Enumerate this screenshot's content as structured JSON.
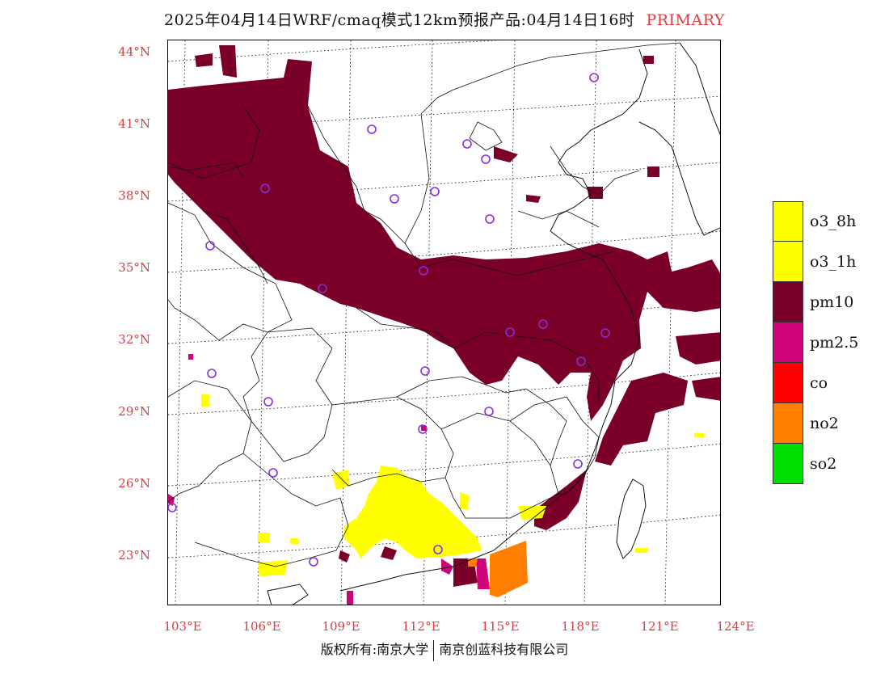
{
  "title": {
    "main": "2025年04月14日WRF/cmaq模式12km预报产品:04月14日16时",
    "tag": "PRIMARY"
  },
  "lat_labels": [
    "44°N",
    "41°N",
    "38°N",
    "35°N",
    "32°N",
    "29°N",
    "26°N",
    "23°N"
  ],
  "lon_labels": [
    "103°E",
    "106°E",
    "109°E",
    "112°E",
    "115°E",
    "118°E",
    "121°E",
    "124°E"
  ],
  "legend": [
    {
      "label": "o3_8h",
      "color": "#ffff00"
    },
    {
      "label": "o3_1h",
      "color": "#ffff00"
    },
    {
      "label": "pm10",
      "color": "#7b0028"
    },
    {
      "label": "pm2.5",
      "color": "#d0047a"
    },
    {
      "label": "co",
      "color": "#ff0000"
    },
    {
      "label": "no2",
      "color": "#ff7f00"
    },
    {
      "label": "so2",
      "color": "#00e000"
    }
  ],
  "footer": {
    "left": "版权所有:南京大学",
    "right": "南京创蓝科技有限公司"
  },
  "colors": {
    "accent_red": "#e0393f",
    "pm10": "#7b0028",
    "pm25": "#d0047a",
    "o3": "#ffff00",
    "no2": "#ff7f00",
    "station": "#8a2be2"
  }
}
